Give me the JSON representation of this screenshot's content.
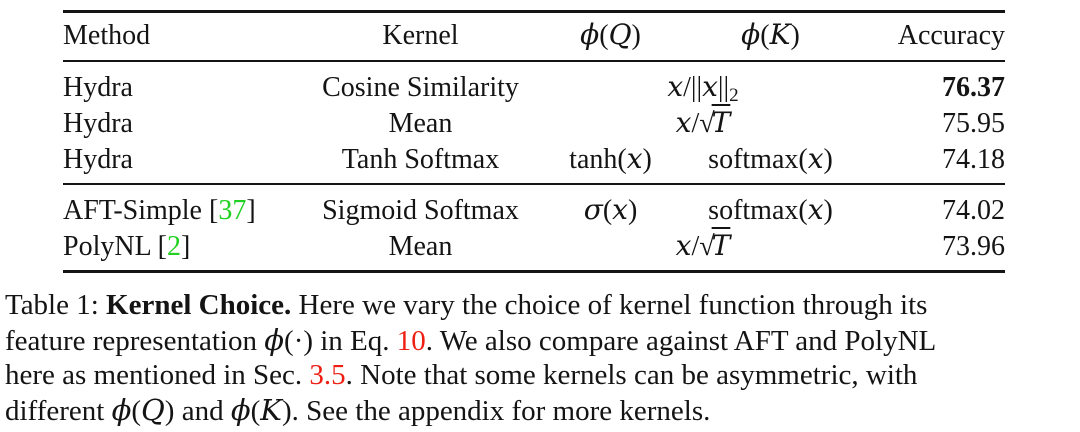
{
  "colors": {
    "citation": "#21d021",
    "reference": "#ee1e13",
    "text": "#141414",
    "rule": "#141414",
    "background": "#ffffff"
  },
  "table": {
    "columns": [
      {
        "id": "method",
        "align": "left",
        "label": [
          {
            "t": "Method"
          }
        ]
      },
      {
        "id": "kernel",
        "align": "center",
        "label": [
          {
            "t": "Kernel"
          }
        ]
      },
      {
        "id": "phi_q",
        "align": "center",
        "label": [
          {
            "t": "ϕ",
            "m": 1
          },
          {
            "t": "("
          },
          {
            "t": "Q",
            "m": 1
          },
          {
            "t": ")"
          }
        ]
      },
      {
        "id": "phi_k",
        "align": "center",
        "label": [
          {
            "t": "ϕ",
            "m": 1
          },
          {
            "t": "("
          },
          {
            "t": "K",
            "m": 1
          },
          {
            "t": ")"
          }
        ]
      },
      {
        "id": "accuracy",
        "align": "right",
        "label": [
          {
            "t": "Accuracy"
          }
        ]
      }
    ],
    "groups": [
      {
        "rows": [
          {
            "cells": [
              {
                "col": "method",
                "segs": [
                  {
                    "t": "Hydra"
                  }
                ]
              },
              {
                "col": "kernel",
                "segs": [
                  {
                    "t": "Cosine Similarity"
                  }
                ]
              },
              {
                "col": "phi_qk",
                "span": 2,
                "align": "center",
                "segs": [
                  {
                    "t": "x",
                    "m": 1
                  },
                  {
                    "t": "/||"
                  },
                  {
                    "t": "x",
                    "m": 1
                  },
                  {
                    "t": "||"
                  },
                  {
                    "t": "2",
                    "sub": 1
                  }
                ]
              },
              {
                "col": "accuracy",
                "bold": true,
                "segs": [
                  {
                    "t": "76.37"
                  }
                ]
              }
            ]
          },
          {
            "cells": [
              {
                "col": "method",
                "segs": [
                  {
                    "t": "Hydra"
                  }
                ]
              },
              {
                "col": "kernel",
                "segs": [
                  {
                    "t": "Mean"
                  }
                ]
              },
              {
                "col": "phi_qk",
                "span": 2,
                "align": "center",
                "segs": [
                  {
                    "t": "x",
                    "m": 1
                  },
                  {
                    "t": "/"
                  },
                  {
                    "t": "√",
                    "rad": 1
                  },
                  {
                    "t": "T",
                    "m": 1,
                    "ol": 1
                  }
                ]
              },
              {
                "col": "accuracy",
                "segs": [
                  {
                    "t": "75.95"
                  }
                ]
              }
            ]
          },
          {
            "cells": [
              {
                "col": "method",
                "segs": [
                  {
                    "t": "Hydra"
                  }
                ]
              },
              {
                "col": "kernel",
                "segs": [
                  {
                    "t": "Tanh Softmax"
                  }
                ]
              },
              {
                "col": "phi_q",
                "segs": [
                  {
                    "t": "tanh("
                  },
                  {
                    "t": "x",
                    "m": 1
                  },
                  {
                    "t": ")"
                  }
                ]
              },
              {
                "col": "phi_k",
                "segs": [
                  {
                    "t": "softmax("
                  },
                  {
                    "t": "x",
                    "m": 1
                  },
                  {
                    "t": ")"
                  }
                ]
              },
              {
                "col": "accuracy",
                "segs": [
                  {
                    "t": "74.18"
                  }
                ]
              }
            ]
          }
        ]
      },
      {
        "rows": [
          {
            "cells": [
              {
                "col": "method",
                "segs": [
                  {
                    "t": "AFT-Simple ["
                  },
                  {
                    "t": "37",
                    "c": "citation"
                  },
                  {
                    "t": "]"
                  }
                ]
              },
              {
                "col": "kernel",
                "segs": [
                  {
                    "t": "Sigmoid Softmax"
                  }
                ]
              },
              {
                "col": "phi_q",
                "segs": [
                  {
                    "t": "σ",
                    "m": 1
                  },
                  {
                    "t": "("
                  },
                  {
                    "t": "x",
                    "m": 1
                  },
                  {
                    "t": ")"
                  }
                ]
              },
              {
                "col": "phi_k",
                "segs": [
                  {
                    "t": "softmax("
                  },
                  {
                    "t": "x",
                    "m": 1
                  },
                  {
                    "t": ")"
                  }
                ]
              },
              {
                "col": "accuracy",
                "segs": [
                  {
                    "t": "74.02"
                  }
                ]
              }
            ]
          },
          {
            "cells": [
              {
                "col": "method",
                "segs": [
                  {
                    "t": "PolyNL ["
                  },
                  {
                    "t": "2",
                    "c": "citation"
                  },
                  {
                    "t": "]"
                  }
                ]
              },
              {
                "col": "kernel",
                "segs": [
                  {
                    "t": "Mean"
                  }
                ]
              },
              {
                "col": "phi_qk",
                "span": 2,
                "align": "center",
                "segs": [
                  {
                    "t": "x",
                    "m": 1
                  },
                  {
                    "t": "/"
                  },
                  {
                    "t": "√",
                    "rad": 1
                  },
                  {
                    "t": "T",
                    "m": 1,
                    "ol": 1
                  }
                ]
              },
              {
                "col": "accuracy",
                "segs": [
                  {
                    "t": "73.96"
                  }
                ]
              }
            ]
          }
        ]
      }
    ]
  },
  "caption": {
    "lines": [
      {
        "segs": [
          {
            "t": "Table 1: "
          },
          {
            "t": "Kernel Choice.",
            "b": 1
          },
          {
            "t": " Here we vary the choice of kernel function through its"
          }
        ]
      },
      {
        "segs": [
          {
            "t": "feature representation "
          },
          {
            "t": "ϕ",
            "m": 1
          },
          {
            "t": "(·) in Eq. "
          },
          {
            "t": "10",
            "c": "reference"
          },
          {
            "t": ". We also compare against AFT and PolyNL"
          }
        ]
      },
      {
        "segs": [
          {
            "t": "here as mentioned in Sec. "
          },
          {
            "t": "3.5",
            "c": "reference"
          },
          {
            "t": ". Note that some kernels can be asymmetric, with"
          }
        ]
      },
      {
        "segs": [
          {
            "t": "different "
          },
          {
            "t": "ϕ",
            "m": 1
          },
          {
            "t": "("
          },
          {
            "t": "Q",
            "m": 1
          },
          {
            "t": ")"
          },
          {
            "t": " and "
          },
          {
            "t": "ϕ",
            "m": 1
          },
          {
            "t": "("
          },
          {
            "t": "K",
            "m": 1
          },
          {
            "t": ")"
          },
          {
            "t": ". See the appendix for more kernels."
          }
        ]
      }
    ]
  }
}
